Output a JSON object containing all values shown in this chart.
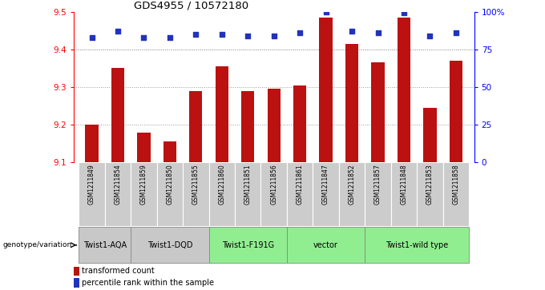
{
  "title": "GDS4955 / 10572180",
  "samples": [
    "GSM1211849",
    "GSM1211854",
    "GSM1211859",
    "GSM1211850",
    "GSM1211855",
    "GSM1211860",
    "GSM1211851",
    "GSM1211856",
    "GSM1211861",
    "GSM1211847",
    "GSM1211852",
    "GSM1211857",
    "GSM1211848",
    "GSM1211853",
    "GSM1211858"
  ],
  "bar_values": [
    9.2,
    9.35,
    9.18,
    9.155,
    9.29,
    9.355,
    9.29,
    9.295,
    9.305,
    9.485,
    9.415,
    9.365,
    9.485,
    9.245,
    9.37
  ],
  "percentile_values": [
    83,
    87,
    83,
    83,
    85,
    85,
    84,
    84,
    86,
    100,
    87,
    86,
    99,
    84,
    86
  ],
  "ylim_left": [
    9.1,
    9.5
  ],
  "ylim_right": [
    0,
    100
  ],
  "yticks_left": [
    9.1,
    9.2,
    9.3,
    9.4,
    9.5
  ],
  "yticks_right": [
    0,
    25,
    50,
    75,
    100
  ],
  "ytick_labels_right": [
    "0",
    "25",
    "50",
    "75",
    "100%"
  ],
  "bar_color": "#BB1111",
  "dot_color": "#2233BB",
  "groups": [
    {
      "label": "Twist1-AQA",
      "start": 0,
      "end": 1,
      "color": "#c8c8c8"
    },
    {
      "label": "Twist1-DQD",
      "start": 2,
      "end": 4,
      "color": "#c8c8c8"
    },
    {
      "label": "Twist1-F191G",
      "start": 5,
      "end": 7,
      "color": "#90ee90"
    },
    {
      "label": "vector",
      "start": 8,
      "end": 10,
      "color": "#90ee90"
    },
    {
      "label": "Twist1-wild type",
      "start": 11,
      "end": 14,
      "color": "#90ee90"
    }
  ],
  "genotype_label": "genotype/variation",
  "legend_bar_label": "transformed count",
  "legend_dot_label": "percentile rank within the sample",
  "bar_color_legend": "#BB1111",
  "dot_color_legend": "#2233BB",
  "grid_color": "#999999",
  "bar_width": 0.5,
  "base_value": 9.1,
  "sample_box_color": "#cccccc",
  "sample_box_edge": "#aaaaaa"
}
